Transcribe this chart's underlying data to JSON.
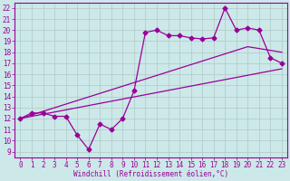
{
  "bg_color": "#cce8e8",
  "grid_color": "#b0c8c8",
  "line_color": "#990099",
  "xlabel": "Windchill (Refroidissement éolien,°C)",
  "xlim": [
    -0.5,
    23.5
  ],
  "ylim": [
    8.5,
    22.5
  ],
  "yticks": [
    9,
    10,
    11,
    12,
    13,
    14,
    15,
    16,
    17,
    18,
    19,
    20,
    21,
    22
  ],
  "xticks": [
    0,
    1,
    2,
    3,
    4,
    5,
    6,
    7,
    8,
    9,
    10,
    11,
    12,
    13,
    14,
    15,
    16,
    17,
    18,
    19,
    20,
    21,
    22,
    23
  ],
  "series1_x": [
    0,
    1,
    2,
    3,
    4,
    5,
    6,
    7,
    8,
    9,
    10,
    11,
    12,
    13,
    14,
    15,
    16,
    17,
    18,
    19,
    20,
    21,
    22,
    23
  ],
  "series1_y": [
    12,
    12.5,
    12.5,
    12.2,
    12.2,
    10.5,
    9.2,
    11.5,
    11.0,
    12.0,
    14.5,
    19.8,
    20.0,
    19.5,
    19.5,
    19.3,
    19.2,
    19.3,
    22.0,
    20.0,
    20.2,
    20.0,
    17.5,
    17.0
  ],
  "series2_x": [
    0,
    20,
    23
  ],
  "series2_y": [
    12,
    18.5,
    18.0
  ],
  "series3_x": [
    0,
    23
  ],
  "series3_y": [
    12,
    16.5
  ],
  "marker": "D",
  "marker_size": 2.5,
  "tick_fontsize": 5.5,
  "xlabel_fontsize": 5.5
}
